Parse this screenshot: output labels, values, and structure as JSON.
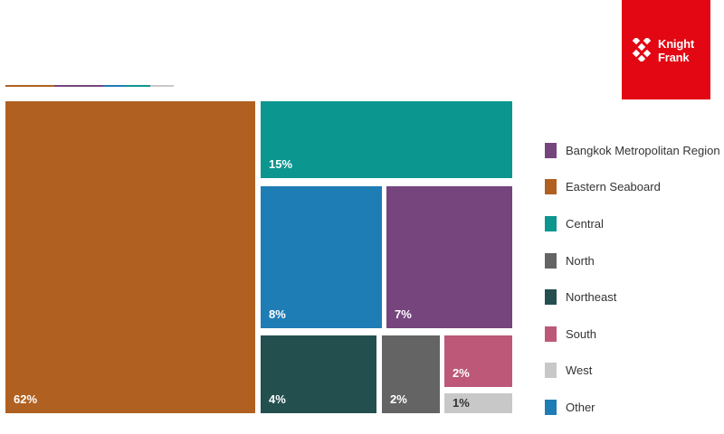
{
  "brand": {
    "logo_line1": "Knight",
    "logo_line2": "Frank",
    "color": "#e30613"
  },
  "chart_data": {
    "type": "treemap",
    "unit": "%",
    "items": [
      {
        "name": "Eastern Seaboard",
        "value": 62,
        "label": "62%",
        "color": "#b06020"
      },
      {
        "name": "Central",
        "value": 15,
        "label": "15%",
        "color": "#0c9690"
      },
      {
        "name": "Other",
        "value": 8,
        "label": "8%",
        "color": "#1f7db6"
      },
      {
        "name": "Bangkok Metropolitan Region",
        "value": 7,
        "label": "7%",
        "color": "#76457e"
      },
      {
        "name": "Northeast",
        "value": 4,
        "label": "4%",
        "color": "#234f4f"
      },
      {
        "name": "North",
        "value": 2,
        "label": "2%",
        "color": "#646464"
      },
      {
        "name": "South",
        "value": 2,
        "label": "2%",
        "color": "#bd5878"
      },
      {
        "name": "West",
        "value": 1,
        "label": "1%",
        "color": "#c8c8c8"
      }
    ],
    "legend": [
      {
        "label": "Bangkok Metropolitan Region",
        "color": "#76457e"
      },
      {
        "label": "Eastern Seaboard",
        "color": "#b06020"
      },
      {
        "label": "Central",
        "color": "#0c9690"
      },
      {
        "label": "North",
        "color": "#646464"
      },
      {
        "label": "Northeast",
        "color": "#234f4f"
      },
      {
        "label": "South",
        "color": "#bd5878"
      },
      {
        "label": "West",
        "color": "#c8c8c8"
      },
      {
        "label": "Other",
        "color": "#1f7db6"
      }
    ],
    "legend_position": "right"
  }
}
